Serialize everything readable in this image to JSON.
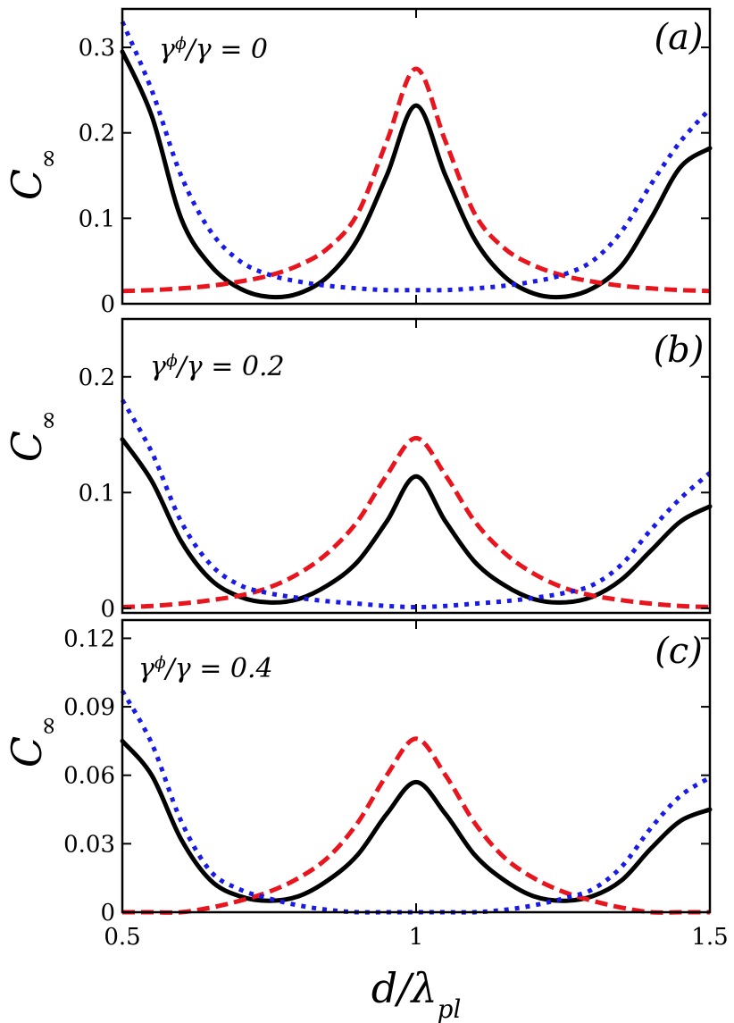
{
  "chart_data": [
    {
      "type": "line",
      "panel_label": "(a)",
      "annotation": "γ^ϕ/γ = 0",
      "ylabel": "C_∞",
      "xlabel": "",
      "xlim": [
        0.5,
        1.5
      ],
      "ylim": [
        0,
        0.345
      ],
      "yticks": [
        0,
        0.1,
        0.2,
        0.3
      ],
      "ytick_labels": [
        "0",
        "0.1",
        "0.2",
        "0.3"
      ],
      "xticks": [
        0.5,
        1,
        1.5
      ],
      "xtick_labels": [],
      "series": [
        {
          "style": "solid",
          "color": "#000000",
          "x": [
            0.5,
            0.55,
            0.6,
            0.65,
            0.7,
            0.75,
            0.8,
            0.85,
            0.9,
            0.95,
            1.0,
            1.05,
            1.1,
            1.15,
            1.2,
            1.25,
            1.3,
            1.35,
            1.4,
            1.45,
            1.5
          ],
          "values": [
            0.295,
            0.22,
            0.1,
            0.045,
            0.018,
            0.008,
            0.012,
            0.032,
            0.075,
            0.15,
            0.232,
            0.15,
            0.075,
            0.032,
            0.012,
            0.008,
            0.018,
            0.045,
            0.1,
            0.16,
            0.182
          ]
        },
        {
          "style": "dashed",
          "color": "#e8141e",
          "x": [
            0.5,
            0.55,
            0.6,
            0.65,
            0.7,
            0.75,
            0.8,
            0.85,
            0.9,
            0.95,
            1.0,
            1.05,
            1.1,
            1.15,
            1.2,
            1.25,
            1.3,
            1.35,
            1.4,
            1.45,
            1.5
          ],
          "values": [
            0.015,
            0.016,
            0.018,
            0.021,
            0.026,
            0.033,
            0.045,
            0.065,
            0.105,
            0.19,
            0.275,
            0.19,
            0.105,
            0.065,
            0.045,
            0.033,
            0.026,
            0.021,
            0.018,
            0.016,
            0.015
          ]
        },
        {
          "style": "dotted",
          "color": "#1a1ae6",
          "x": [
            0.5,
            0.55,
            0.6,
            0.65,
            0.7,
            0.75,
            0.8,
            0.85,
            0.9,
            0.95,
            1.0,
            1.05,
            1.1,
            1.15,
            1.2,
            1.25,
            1.3,
            1.35,
            1.4,
            1.45,
            1.5
          ],
          "values": [
            0.33,
            0.25,
            0.15,
            0.085,
            0.05,
            0.034,
            0.026,
            0.021,
            0.018,
            0.016,
            0.016,
            0.016,
            0.018,
            0.021,
            0.026,
            0.034,
            0.05,
            0.085,
            0.14,
            0.19,
            0.228
          ]
        }
      ]
    },
    {
      "type": "line",
      "panel_label": "(b)",
      "annotation": "γ^ϕ/γ = 0.2",
      "ylabel": "C_∞",
      "xlabel": "",
      "xlim": [
        0.5,
        1.5
      ],
      "ylim": [
        -0.004,
        0.25
      ],
      "yticks": [
        0,
        0.1,
        0.2
      ],
      "ytick_labels": [
        "0",
        "0.1",
        "0.2"
      ],
      "xticks": [
        0.5,
        1,
        1.5
      ],
      "xtick_labels": [],
      "series": [
        {
          "style": "solid",
          "color": "#000000",
          "x": [
            0.5,
            0.55,
            0.6,
            0.65,
            0.7,
            0.75,
            0.8,
            0.85,
            0.9,
            0.95,
            1.0,
            1.05,
            1.1,
            1.15,
            1.2,
            1.25,
            1.3,
            1.35,
            1.4,
            1.45,
            1.5
          ],
          "values": [
            0.146,
            0.11,
            0.058,
            0.025,
            0.01,
            0.005,
            0.008,
            0.02,
            0.04,
            0.075,
            0.114,
            0.075,
            0.04,
            0.02,
            0.008,
            0.005,
            0.01,
            0.025,
            0.05,
            0.075,
            0.088
          ]
        },
        {
          "style": "dashed",
          "color": "#e8141e",
          "x": [
            0.5,
            0.55,
            0.6,
            0.65,
            0.7,
            0.75,
            0.8,
            0.85,
            0.9,
            0.95,
            1.0,
            1.05,
            1.1,
            1.15,
            1.2,
            1.25,
            1.3,
            1.35,
            1.4,
            1.45,
            1.5
          ],
          "values": [
            0.001,
            0.002,
            0.004,
            0.007,
            0.011,
            0.018,
            0.03,
            0.048,
            0.075,
            0.115,
            0.147,
            0.115,
            0.075,
            0.048,
            0.03,
            0.018,
            0.011,
            0.007,
            0.004,
            0.002,
            0.001
          ]
        },
        {
          "style": "dotted",
          "color": "#1a1ae6",
          "x": [
            0.5,
            0.55,
            0.6,
            0.65,
            0.7,
            0.75,
            0.8,
            0.85,
            0.9,
            0.95,
            1.0,
            1.05,
            1.1,
            1.15,
            1.2,
            1.25,
            1.3,
            1.35,
            1.4,
            1.45,
            1.5
          ],
          "values": [
            0.18,
            0.135,
            0.075,
            0.038,
            0.02,
            0.013,
            0.009,
            0.006,
            0.004,
            0.002,
            0.001,
            0.002,
            0.004,
            0.006,
            0.009,
            0.013,
            0.02,
            0.038,
            0.068,
            0.095,
            0.117
          ]
        }
      ]
    },
    {
      "type": "line",
      "panel_label": "(c)",
      "annotation": "γ^ϕ/γ = 0.4",
      "ylabel": "C_∞",
      "xlabel": "d/λ_pl",
      "xlim": [
        0.5,
        1.5
      ],
      "ylim": [
        0,
        0.128
      ],
      "yticks": [
        0,
        0.03,
        0.06,
        0.09,
        0.12
      ],
      "ytick_labels": [
        "0",
        "0.03",
        "0.06",
        "0.09",
        "0.12"
      ],
      "xticks": [
        0.5,
        1,
        1.5
      ],
      "xtick_labels": [
        "0.5",
        "1",
        "1.5"
      ],
      "series": [
        {
          "style": "solid",
          "color": "#000000",
          "x": [
            0.5,
            0.55,
            0.6,
            0.65,
            0.7,
            0.75,
            0.8,
            0.85,
            0.9,
            0.95,
            1.0,
            1.05,
            1.1,
            1.15,
            1.2,
            1.25,
            1.3,
            1.35,
            1.4,
            1.45,
            1.5
          ],
          "values": [
            0.075,
            0.06,
            0.032,
            0.014,
            0.007,
            0.005,
            0.007,
            0.014,
            0.025,
            0.043,
            0.057,
            0.043,
            0.025,
            0.014,
            0.007,
            0.005,
            0.007,
            0.014,
            0.028,
            0.04,
            0.045
          ]
        },
        {
          "style": "dashed",
          "color": "#e8141e",
          "x": [
            0.5,
            0.55,
            0.6,
            0.65,
            0.7,
            0.75,
            0.8,
            0.85,
            0.9,
            0.95,
            1.0,
            1.05,
            1.1,
            1.15,
            1.2,
            1.25,
            1.3,
            1.35,
            1.4,
            1.45,
            1.5
          ],
          "values": [
            0,
            0,
            0,
            0.002,
            0.005,
            0.009,
            0.015,
            0.024,
            0.039,
            0.06,
            0.076,
            0.06,
            0.039,
            0.024,
            0.015,
            0.009,
            0.005,
            0.002,
            0,
            0,
            0
          ]
        },
        {
          "style": "dotted",
          "color": "#1a1ae6",
          "x": [
            0.5,
            0.55,
            0.6,
            0.65,
            0.7,
            0.75,
            0.8,
            0.85,
            0.9,
            0.95,
            1.0,
            1.05,
            1.1,
            1.15,
            1.2,
            1.25,
            1.3,
            1.35,
            1.4,
            1.45,
            1.5
          ],
          "values": [
            0.097,
            0.074,
            0.04,
            0.018,
            0.01,
            0.006,
            0.003,
            0.001,
            0,
            0,
            0,
            0,
            0,
            0.001,
            0.003,
            0.006,
            0.01,
            0.02,
            0.037,
            0.051,
            0.059
          ]
        }
      ]
    }
  ]
}
